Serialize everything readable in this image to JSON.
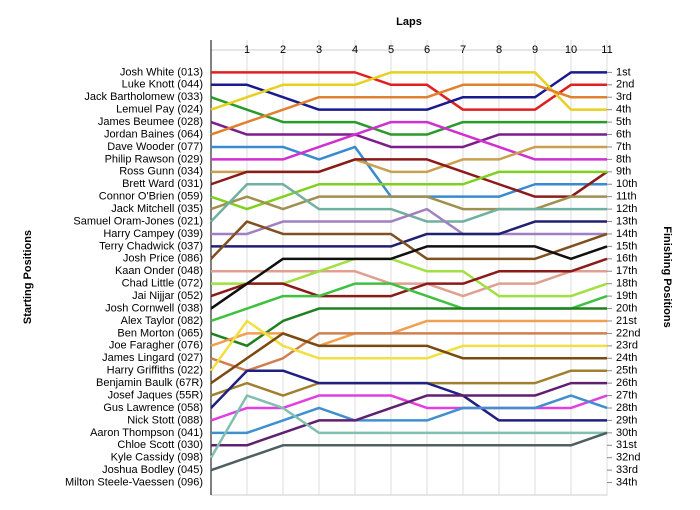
{
  "chart_data": {
    "type": "line",
    "x_label": "Laps",
    "y_label": "Starting Positions",
    "y2_label": "Finishing Positions",
    "x": [
      0,
      1,
      2,
      3,
      4,
      5,
      6,
      7,
      8,
      9,
      10,
      11
    ],
    "xlim": [
      0,
      11
    ],
    "xticks": [
      1,
      2,
      3,
      4,
      5,
      6,
      7,
      8,
      9,
      10,
      11
    ],
    "ylim": [
      35,
      -0.8
    ],
    "yticks": [
      {
        "value": 1,
        "label": "1st"
      },
      {
        "value": 2,
        "label": "2nd"
      },
      {
        "value": 3,
        "label": "3rd"
      },
      {
        "value": 4,
        "label": "4th"
      },
      {
        "value": 5,
        "label": "5th"
      },
      {
        "value": 6,
        "label": "6th"
      },
      {
        "value": 7,
        "label": "7th"
      },
      {
        "value": 8,
        "label": "8th"
      },
      {
        "value": 9,
        "label": "9th"
      },
      {
        "value": 10,
        "label": "10th"
      },
      {
        "value": 11,
        "label": "11th"
      },
      {
        "value": 12,
        "label": "12th"
      },
      {
        "value": 13,
        "label": "13th"
      },
      {
        "value": 14,
        "label": "14th"
      },
      {
        "value": 15,
        "label": "15th"
      },
      {
        "value": 16,
        "label": "16th"
      },
      {
        "value": 17,
        "label": "17th"
      },
      {
        "value": 18,
        "label": "18th"
      },
      {
        "value": 19,
        "label": "19th"
      },
      {
        "value": 20,
        "label": "20th"
      },
      {
        "value": 21,
        "label": "21st"
      },
      {
        "value": 22,
        "label": "22nd"
      },
      {
        "value": 23,
        "label": "23rd"
      },
      {
        "value": 24,
        "label": "24th"
      },
      {
        "value": 25,
        "label": "25th"
      },
      {
        "value": 26,
        "label": "26th"
      },
      {
        "value": 27,
        "label": "27th"
      },
      {
        "value": 28,
        "label": "28th"
      },
      {
        "value": 29,
        "label": "29th"
      },
      {
        "value": 30,
        "label": "30th"
      },
      {
        "value": 31,
        "label": "31st"
      },
      {
        "value": 32,
        "label": "32nd"
      },
      {
        "value": 33,
        "label": "33rd"
      },
      {
        "value": 34,
        "label": "34th"
      }
    ],
    "grid": true,
    "series": [
      {
        "name": "Josh White (013)",
        "color": "#e02020",
        "values": [
          1,
          1,
          1,
          1,
          1,
          2,
          2,
          4,
          4,
          4,
          2,
          2
        ]
      },
      {
        "name": "Luke Knott (044)",
        "color": "#1a1a8c",
        "values": [
          2,
          2,
          3,
          4,
          4,
          4,
          4,
          3,
          3,
          3,
          1,
          1
        ]
      },
      {
        "name": "Jack Bartholomew (033)",
        "color": "#2a9a2a",
        "values": [
          3,
          4,
          5,
          5,
          5,
          6,
          6,
          5,
          5,
          5,
          5,
          5
        ]
      },
      {
        "name": "Lemuel Pay (024)",
        "color": "#e8d020",
        "values": [
          4,
          3,
          2,
          2,
          2,
          1,
          1,
          1,
          1,
          1,
          4,
          4
        ]
      },
      {
        "name": "James Beumee (028)",
        "color": "#7a1f8a",
        "values": [
          5,
          6,
          6,
          6,
          6,
          7,
          7,
          7,
          6,
          6,
          6,
          6
        ]
      },
      {
        "name": "Jordan Baines (064)",
        "color": "#e08030",
        "values": [
          6,
          5,
          4,
          3,
          3,
          3,
          3,
          2,
          2,
          2,
          3,
          3
        ]
      },
      {
        "name": "Dave Wooder (077)",
        "color": "#3a8ad0",
        "values": [
          7,
          7,
          7,
          8,
          7,
          11,
          11,
          11,
          11,
          10,
          10,
          10
        ]
      },
      {
        "name": "Philip Rawson (029)",
        "color": "#d030d0",
        "values": [
          8,
          8,
          8,
          7,
          6,
          5,
          5,
          6,
          7,
          8,
          8,
          8
        ]
      },
      {
        "name": "Ross Gunn (034)",
        "color": "#c8a050",
        "values": [
          9,
          9,
          9,
          9,
          8,
          9,
          9,
          8,
          8,
          7,
          7,
          7
        ]
      },
      {
        "name": "Brett Ward (031)",
        "color": "#8b1a1a",
        "values": [
          10,
          9,
          9,
          9,
          8,
          8,
          8,
          9,
          10,
          11,
          11,
          9
        ]
      },
      {
        "name": "Connor O'Brien (059)",
        "color": "#80d020",
        "values": [
          11,
          12,
          11,
          10,
          10,
          10,
          10,
          10,
          9,
          9,
          9,
          9
        ]
      },
      {
        "name": "Jack Mitchell (035)",
        "color": "#a09050",
        "values": [
          12,
          11,
          12,
          11,
          11,
          11,
          11,
          12,
          12,
          12,
          11,
          11
        ]
      },
      {
        "name": "Samuel Oram-Jones (021)",
        "color": "#70b0a0",
        "values": [
          13,
          10,
          10,
          12,
          12,
          12,
          13,
          13,
          12,
          12,
          12,
          12
        ]
      },
      {
        "name": "Harry Campey (039)",
        "color": "#a080c0",
        "values": [
          14,
          14,
          13,
          13,
          13,
          13,
          12,
          14,
          14,
          14,
          14,
          14
        ]
      },
      {
        "name": "Terry Chadwick (037)",
        "color": "#202070",
        "values": [
          15,
          15,
          15,
          15,
          15,
          15,
          14,
          14,
          14,
          13,
          13,
          13
        ]
      },
      {
        "name": "Josh Price (086)",
        "color": "#805020",
        "values": [
          16,
          13,
          14,
          14,
          14,
          14,
          16,
          16,
          16,
          16,
          15,
          14
        ]
      },
      {
        "name": "Kaan Onder (048)",
        "color": "#e0a090",
        "values": [
          17,
          17,
          17,
          17,
          17,
          18,
          18,
          19,
          18,
          18,
          17,
          17
        ]
      },
      {
        "name": "Chad Little (072)",
        "color": "#a0e040",
        "values": [
          18,
          18,
          18,
          17,
          16,
          16,
          17,
          17,
          19,
          19,
          19,
          18
        ]
      },
      {
        "name": "Jai Nijjar (052)",
        "color": "#8b1a1a",
        "values": [
          19,
          18,
          18,
          19,
          19,
          19,
          18,
          18,
          17,
          17,
          17,
          16
        ]
      },
      {
        "name": "Josh Cornwell (038)",
        "color": "#101010",
        "values": [
          20,
          18,
          16,
          16,
          16,
          16,
          15,
          15,
          15,
          15,
          16,
          15
        ]
      },
      {
        "name": "Alex Taylor (082)",
        "color": "#40c040",
        "values": [
          21,
          20,
          19,
          19,
          18,
          18,
          19,
          20,
          20,
          20,
          20,
          19
        ]
      },
      {
        "name": "Ben Morton (065)",
        "color": "#208020",
        "values": [
          22,
          23,
          21,
          20,
          20,
          20,
          20,
          20,
          20,
          20,
          20,
          20
        ]
      },
      {
        "name": "Joe Faragher (076)",
        "color": "#f0a050",
        "values": [
          23,
          22,
          22,
          23,
          22,
          22,
          21,
          21,
          21,
          21,
          21,
          21
        ]
      },
      {
        "name": "James Lingard (027)",
        "color": "#d08050",
        "values": [
          24,
          25,
          24,
          22,
          22,
          22,
          22,
          22,
          22,
          22,
          22,
          22
        ]
      },
      {
        "name": "Harry Griffiths (022)",
        "color": "#f0e040",
        "values": [
          25,
          21,
          23,
          24,
          24,
          24,
          24,
          23,
          23,
          23,
          23,
          23
        ]
      },
      {
        "name": "Benjamin Baulk (67R)",
        "color": "#7a4a10",
        "values": [
          26,
          24,
          22,
          23,
          23,
          23,
          23,
          24,
          24,
          24,
          24,
          24
        ]
      },
      {
        "name": "Josef Jaques (55R)",
        "color": "#a08030",
        "values": [
          27,
          26,
          27,
          26,
          26,
          26,
          26,
          26,
          26,
          26,
          25,
          25
        ]
      },
      {
        "name": "Gus Lawrence (058)",
        "color": "#202080",
        "values": [
          28,
          25,
          25,
          26,
          26,
          26,
          26,
          27,
          29,
          29,
          29,
          29
        ]
      },
      {
        "name": "Nick Stott (088)",
        "color": "#e040e0",
        "values": [
          29,
          28,
          28,
          27,
          27,
          27,
          28,
          28,
          28,
          28,
          28,
          27
        ]
      },
      {
        "name": "Aaron Thompson (041)",
        "color": "#4090d0",
        "values": [
          30,
          30,
          29,
          28,
          29,
          29,
          29,
          28,
          28,
          28,
          27,
          28
        ]
      },
      {
        "name": "Chloe Scott (030)",
        "color": "#602070",
        "values": [
          31,
          31,
          30,
          29,
          29,
          28,
          27,
          27,
          27,
          27,
          26,
          26
        ]
      },
      {
        "name": "Kyle Cassidy (098)",
        "color": "#80c0b0",
        "values": [
          32,
          27,
          28,
          30,
          30,
          30,
          30,
          30,
          30,
          30,
          30,
          30
        ]
      },
      {
        "name": "Joshua Bodley (045)",
        "color": "#506060",
        "values": [
          33,
          32,
          31,
          31,
          31,
          31,
          31,
          31,
          31,
          31,
          31,
          30
        ]
      },
      {
        "name": "Milton Steele-Vaessen (096)",
        "color": "#909090",
        "values": [
          34,
          null,
          null,
          null,
          null,
          null,
          null,
          null,
          null,
          null,
          null,
          null
        ]
      }
    ]
  }
}
